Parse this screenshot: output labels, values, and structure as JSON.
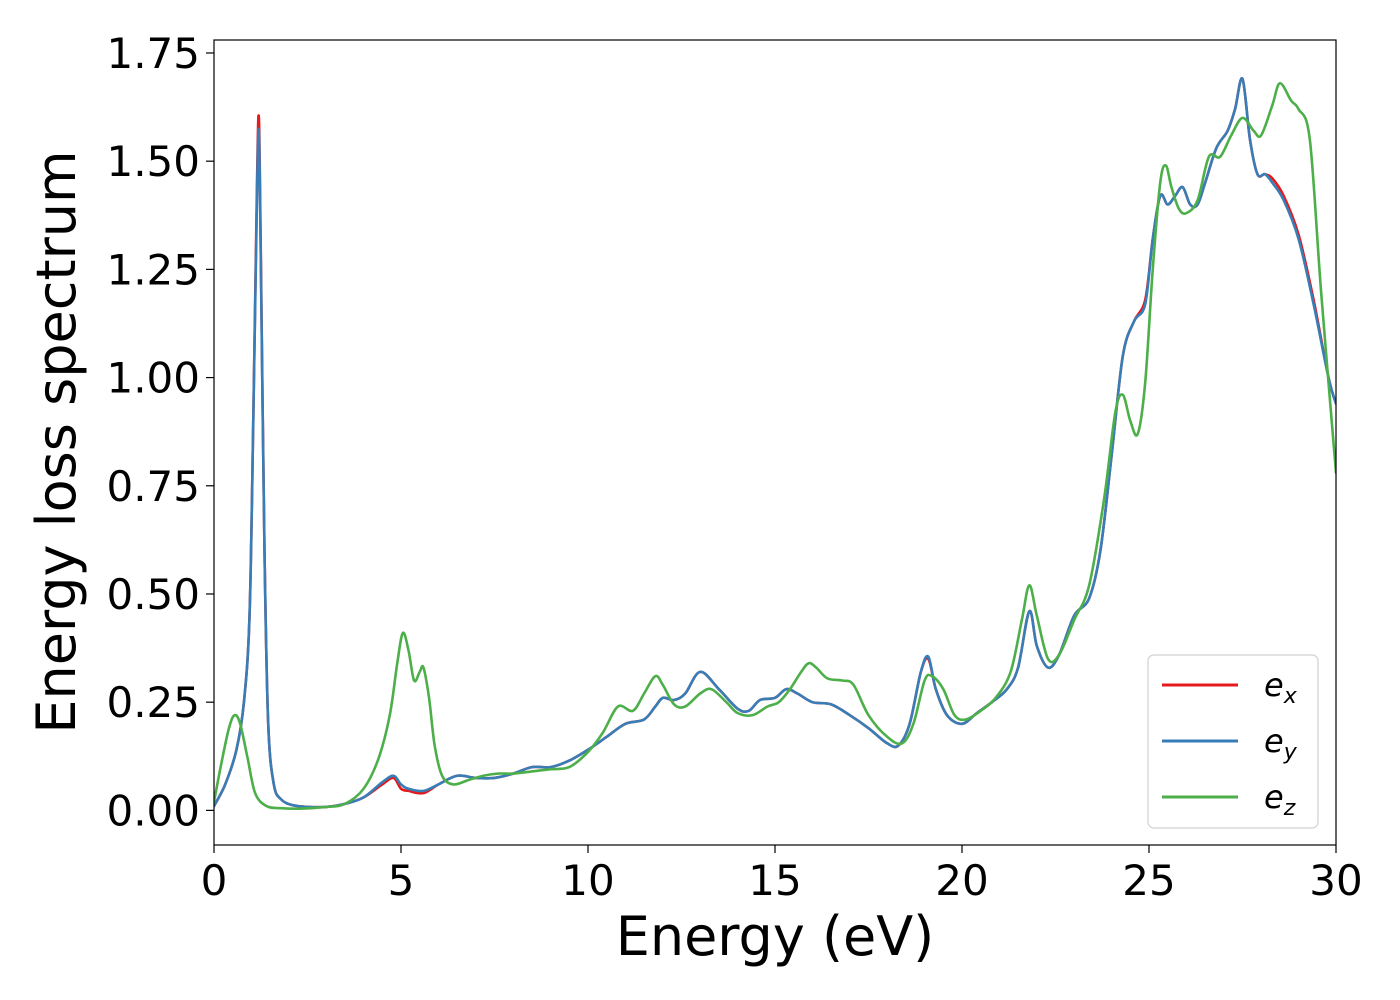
{
  "chart_data": {
    "type": "line",
    "title": "",
    "xlabel": "Energy (eV)",
    "ylabel": "Energy loss spectrum",
    "xlim": [
      0,
      30
    ],
    "ylim": [
      -0.08,
      1.78
    ],
    "xticks": [
      0,
      5,
      10,
      15,
      20,
      25,
      30
    ],
    "xtick_labels": [
      "0",
      "5",
      "10",
      "15",
      "20",
      "25",
      "30"
    ],
    "yticks": [
      0.0,
      0.25,
      0.5,
      0.75,
      1.0,
      1.25,
      1.5,
      1.75
    ],
    "ytick_labels": [
      "0.00",
      "0.25",
      "0.50",
      "0.75",
      "1.00",
      "1.25",
      "1.50",
      "1.75"
    ],
    "grid": false,
    "legend_position": "bottom-right",
    "series": [
      {
        "name": "e",
        "subscript": "x",
        "color": "#e41a1c",
        "x": [
          0,
          0.3,
          0.6,
          0.8,
          0.95,
          1.05,
          1.15,
          1.2,
          1.25,
          1.35,
          1.45,
          1.6,
          1.8,
          2.1,
          2.5,
          3.0,
          3.5,
          4.0,
          4.5,
          4.8,
          5.0,
          5.2,
          5.6,
          6.0,
          6.5,
          7.0,
          7.5,
          8.0,
          8.5,
          9.0,
          9.5,
          10.0,
          10.5,
          11.0,
          11.5,
          11.8,
          12.0,
          12.3,
          12.6,
          13.0,
          13.5,
          14.0,
          14.3,
          14.6,
          15.0,
          15.3,
          15.6,
          16.0,
          16.5,
          17.0,
          17.5,
          18.0,
          18.3,
          18.6,
          18.9,
          19.1,
          19.3,
          19.6,
          20.0,
          20.4,
          20.8,
          21.2,
          21.5,
          21.8,
          22.0,
          22.3,
          22.6,
          23.0,
          23.4,
          23.7,
          24.0,
          24.3,
          24.6,
          24.9,
          25.1,
          25.3,
          25.5,
          25.7,
          25.9,
          26.1,
          26.3,
          26.5,
          26.8,
          27.1,
          27.3,
          27.5,
          27.7,
          27.9,
          28.1,
          28.3,
          28.6,
          29.0,
          29.4,
          29.8,
          30.0
        ],
        "y": [
          0.01,
          0.06,
          0.14,
          0.25,
          0.45,
          0.9,
          1.45,
          1.6,
          1.3,
          0.6,
          0.2,
          0.06,
          0.025,
          0.012,
          0.008,
          0.008,
          0.015,
          0.03,
          0.06,
          0.075,
          0.05,
          0.045,
          0.04,
          0.06,
          0.08,
          0.075,
          0.075,
          0.085,
          0.1,
          0.1,
          0.115,
          0.14,
          0.17,
          0.2,
          0.21,
          0.24,
          0.26,
          0.255,
          0.27,
          0.32,
          0.28,
          0.235,
          0.23,
          0.255,
          0.26,
          0.28,
          0.27,
          0.25,
          0.245,
          0.22,
          0.19,
          0.155,
          0.15,
          0.2,
          0.32,
          0.35,
          0.28,
          0.22,
          0.2,
          0.225,
          0.25,
          0.28,
          0.33,
          0.46,
          0.38,
          0.33,
          0.36,
          0.45,
          0.49,
          0.6,
          0.82,
          1.05,
          1.13,
          1.18,
          1.32,
          1.42,
          1.4,
          1.42,
          1.44,
          1.4,
          1.4,
          1.45,
          1.53,
          1.57,
          1.62,
          1.69,
          1.55,
          1.47,
          1.47,
          1.46,
          1.42,
          1.33,
          1.18,
          1.0,
          0.94
        ]
      },
      {
        "name": "e",
        "subscript": "y",
        "color": "#377eb8",
        "x": [
          0,
          0.3,
          0.6,
          0.8,
          0.95,
          1.05,
          1.15,
          1.2,
          1.25,
          1.35,
          1.45,
          1.6,
          1.8,
          2.1,
          2.5,
          3.0,
          3.5,
          4.0,
          4.5,
          4.8,
          5.0,
          5.2,
          5.6,
          6.0,
          6.5,
          7.0,
          7.5,
          8.0,
          8.5,
          9.0,
          9.5,
          10.0,
          10.5,
          11.0,
          11.5,
          11.8,
          12.0,
          12.3,
          12.6,
          13.0,
          13.5,
          14.0,
          14.3,
          14.6,
          15.0,
          15.3,
          15.6,
          16.0,
          16.5,
          17.0,
          17.5,
          18.0,
          18.3,
          18.6,
          18.9,
          19.1,
          19.3,
          19.6,
          20.0,
          20.4,
          20.8,
          21.2,
          21.5,
          21.8,
          22.0,
          22.3,
          22.6,
          23.0,
          23.4,
          23.7,
          24.0,
          24.3,
          24.6,
          24.9,
          25.1,
          25.3,
          25.5,
          25.7,
          25.9,
          26.1,
          26.3,
          26.5,
          26.8,
          27.1,
          27.3,
          27.5,
          27.7,
          27.9,
          28.1,
          28.3,
          28.6,
          29.0,
          29.4,
          29.8,
          30.0
        ],
        "y": [
          0.01,
          0.06,
          0.14,
          0.25,
          0.45,
          0.9,
          1.42,
          1.57,
          1.28,
          0.6,
          0.2,
          0.06,
          0.025,
          0.012,
          0.008,
          0.008,
          0.015,
          0.03,
          0.065,
          0.08,
          0.06,
          0.05,
          0.045,
          0.06,
          0.08,
          0.075,
          0.075,
          0.085,
          0.1,
          0.1,
          0.115,
          0.14,
          0.17,
          0.2,
          0.21,
          0.24,
          0.26,
          0.255,
          0.27,
          0.32,
          0.28,
          0.235,
          0.23,
          0.255,
          0.26,
          0.28,
          0.27,
          0.25,
          0.245,
          0.22,
          0.19,
          0.155,
          0.15,
          0.2,
          0.32,
          0.355,
          0.28,
          0.22,
          0.2,
          0.225,
          0.25,
          0.28,
          0.33,
          0.46,
          0.38,
          0.33,
          0.36,
          0.45,
          0.49,
          0.6,
          0.82,
          1.05,
          1.13,
          1.17,
          1.32,
          1.42,
          1.4,
          1.42,
          1.44,
          1.4,
          1.4,
          1.45,
          1.53,
          1.57,
          1.62,
          1.69,
          1.55,
          1.47,
          1.47,
          1.45,
          1.41,
          1.32,
          1.17,
          1.0,
          0.94
        ]
      },
      {
        "name": "e",
        "subscript": "z",
        "color": "#4daf4a",
        "x": [
          0,
          0.2,
          0.4,
          0.55,
          0.7,
          0.9,
          1.1,
          1.4,
          1.8,
          2.3,
          3.0,
          3.5,
          4.0,
          4.4,
          4.7,
          4.9,
          5.05,
          5.2,
          5.35,
          5.5,
          5.6,
          5.75,
          5.9,
          6.1,
          6.4,
          6.8,
          7.2,
          7.6,
          8.0,
          8.5,
          9.0,
          9.5,
          10.0,
          10.4,
          10.8,
          11.2,
          11.5,
          11.8,
          12.0,
          12.3,
          12.6,
          13.0,
          13.3,
          13.7,
          14.0,
          14.4,
          14.8,
          15.1,
          15.4,
          15.7,
          15.9,
          16.1,
          16.4,
          16.8,
          17.1,
          17.5,
          18.0,
          18.4,
          18.7,
          19.0,
          19.2,
          19.5,
          19.8,
          20.1,
          20.5,
          20.9,
          21.3,
          21.6,
          21.8,
          22.0,
          22.3,
          22.6,
          23.0,
          23.4,
          23.8,
          24.1,
          24.3,
          24.5,
          24.7,
          24.9,
          25.1,
          25.3,
          25.45,
          25.6,
          25.8,
          26.0,
          26.3,
          26.6,
          26.9,
          27.2,
          27.5,
          27.8,
          28.0,
          28.3,
          28.5,
          28.8,
          29.0,
          29.3,
          29.6,
          30.0
        ],
        "y": [
          0.02,
          0.11,
          0.19,
          0.22,
          0.2,
          0.12,
          0.04,
          0.01,
          0.005,
          0.004,
          0.008,
          0.015,
          0.05,
          0.12,
          0.22,
          0.34,
          0.41,
          0.37,
          0.3,
          0.32,
          0.33,
          0.26,
          0.15,
          0.08,
          0.06,
          0.07,
          0.08,
          0.085,
          0.085,
          0.09,
          0.095,
          0.1,
          0.135,
          0.18,
          0.24,
          0.23,
          0.27,
          0.31,
          0.29,
          0.245,
          0.24,
          0.27,
          0.28,
          0.25,
          0.225,
          0.22,
          0.24,
          0.25,
          0.28,
          0.32,
          0.34,
          0.33,
          0.305,
          0.3,
          0.29,
          0.22,
          0.17,
          0.155,
          0.2,
          0.3,
          0.31,
          0.28,
          0.22,
          0.21,
          0.23,
          0.26,
          0.32,
          0.44,
          0.52,
          0.45,
          0.35,
          0.36,
          0.44,
          0.52,
          0.72,
          0.92,
          0.96,
          0.9,
          0.87,
          0.99,
          1.25,
          1.45,
          1.49,
          1.44,
          1.39,
          1.38,
          1.41,
          1.51,
          1.51,
          1.56,
          1.6,
          1.57,
          1.56,
          1.63,
          1.68,
          1.64,
          1.62,
          1.55,
          1.2,
          0.78
        ]
      }
    ]
  }
}
